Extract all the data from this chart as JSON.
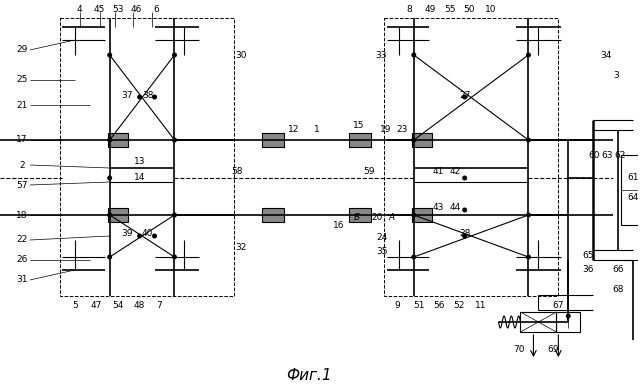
{
  "bg_color": "#ffffff",
  "fig_caption": "Фиг.1",
  "caption_fontsize": 11
}
